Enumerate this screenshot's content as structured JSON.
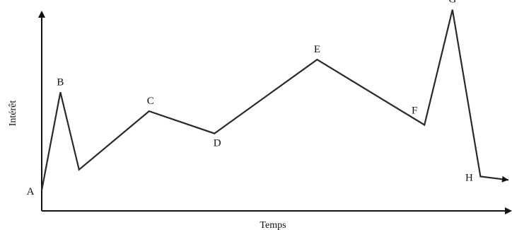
{
  "chart_data": {
    "type": "line",
    "title": "",
    "xlabel": "Temps",
    "ylabel": "Intérêt",
    "grid": false,
    "legend": "none",
    "xlim": [
      0,
      10
    ],
    "ylim": [
      0,
      10
    ],
    "line_color": "#2a2a2a",
    "axis_color": "#111111",
    "series": [
      {
        "points": [
          {
            "label": "A",
            "x": 0.0,
            "y": 1.2
          },
          {
            "label": "B",
            "x": 0.4,
            "y": 6.9
          },
          {
            "label": "",
            "x": 0.8,
            "y": 2.4
          },
          {
            "label": "C",
            "x": 2.3,
            "y": 5.8
          },
          {
            "label": "D",
            "x": 3.7,
            "y": 4.5
          },
          {
            "label": "E",
            "x": 5.9,
            "y": 8.8
          },
          {
            "label": "F",
            "x": 8.2,
            "y": 5.0
          },
          {
            "label": "G",
            "x": 8.8,
            "y": 11.7
          },
          {
            "label": "H",
            "x": 9.4,
            "y": 2.0
          },
          {
            "label": "",
            "x": 10.0,
            "y": 1.8
          }
        ]
      }
    ]
  }
}
